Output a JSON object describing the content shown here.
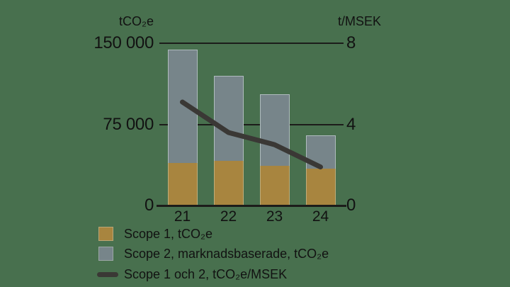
{
  "background_color": "#48704E",
  "text_color": "#121212",
  "axis_line_color": "#1C1C1A",
  "chart_data": {
    "type": "combo_stacked_bar_line",
    "categories": [
      "21",
      "22",
      "23",
      "24"
    ],
    "series": [
      {
        "name": "Scope 1, tCO₂e",
        "type": "bar",
        "stack": "emissions",
        "axis": "left",
        "color": "#A8853F",
        "values": [
          39000,
          41000,
          37000,
          34000
        ]
      },
      {
        "name": "Scope 2, marknadsbaserade, tCO₂e",
        "type": "bar",
        "stack": "emissions",
        "axis": "left",
        "color": "#77858A",
        "values": [
          105000,
          79000,
          66000,
          31000
        ]
      },
      {
        "name": "Scope 1 och 2, tCO₂e/MSEK",
        "type": "line",
        "axis": "right",
        "color": "#3A3835",
        "values": [
          5.1,
          3.6,
          3.0,
          1.9
        ]
      }
    ],
    "left_axis": {
      "unit": "tCO₂e",
      "min": 0,
      "max": 150000,
      "ticks": [
        {
          "value": 150000,
          "label": "150 000"
        },
        {
          "value": 75000,
          "label": "75 000"
        },
        {
          "value": 0,
          "label": "0"
        }
      ]
    },
    "right_axis": {
      "unit": "t/MSEK",
      "min": 0,
      "max": 8,
      "ticks": [
        {
          "value": 8,
          "label": "8"
        },
        {
          "value": 4,
          "label": "4"
        },
        {
          "value": 0,
          "label": "0"
        }
      ]
    },
    "grid": {
      "horizontal_lines": [
        75000,
        150000
      ],
      "behind_bars": true
    },
    "legend_position": "bottom-left"
  }
}
